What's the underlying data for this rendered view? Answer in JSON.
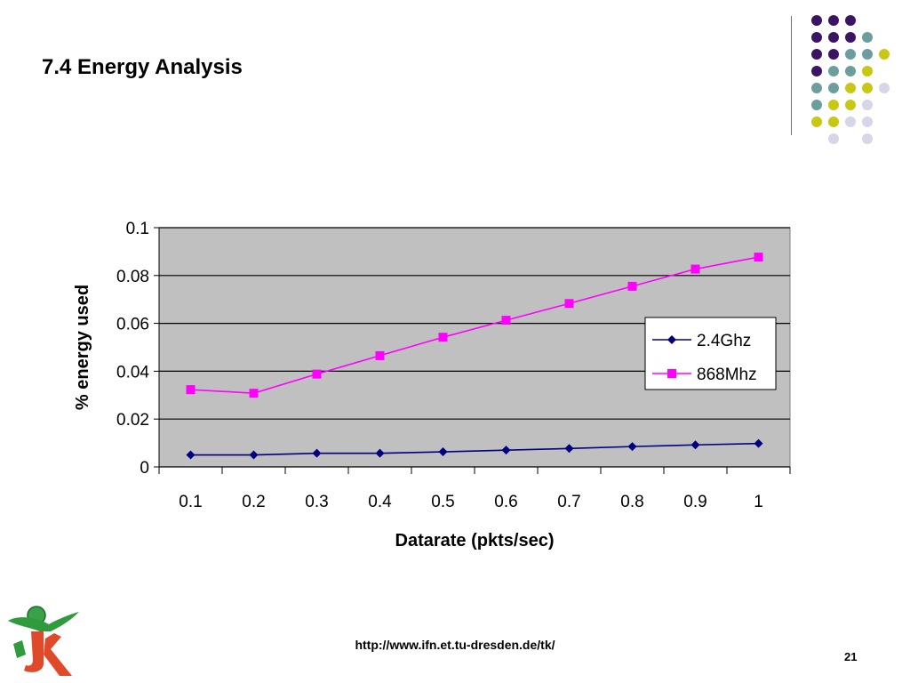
{
  "slide": {
    "title": "7.4 Energy Analysis",
    "footer_url": "http://www.ifn.et.tu-dresden.de/tk/",
    "page_number": "21"
  },
  "decoration": {
    "dot_colors": {
      "purple": "#3c1464",
      "teal": "#6b9e9c",
      "yellow": "#c8c814",
      "lavender": "#d6d6e8"
    },
    "dot_grid": [
      [
        "purple",
        "purple",
        "purple",
        null,
        null
      ],
      [
        "purple",
        "purple",
        "purple",
        "teal",
        null
      ],
      [
        "purple",
        "purple",
        "teal",
        "teal",
        "yellow"
      ],
      [
        "purple",
        "teal",
        "teal",
        "yellow",
        null
      ],
      [
        "teal",
        "teal",
        "yellow",
        "yellow",
        "lavender"
      ],
      [
        "teal",
        "yellow",
        "yellow",
        "lavender",
        null
      ],
      [
        "yellow",
        "yellow",
        "lavender",
        "lavender",
        null
      ],
      [
        null,
        "lavender",
        null,
        "lavender",
        null
      ]
    ]
  },
  "chart_data": {
    "type": "line",
    "title": "",
    "xlabel": "Datarate (pkts/sec)",
    "ylabel": "% energy used",
    "categories": [
      "0.1",
      "0.2",
      "0.3",
      "0.4",
      "0.5",
      "0.6",
      "0.7",
      "0.8",
      "0.9",
      "1"
    ],
    "yticks": [
      "0",
      "0.02",
      "0.04",
      "0.06",
      "0.08",
      "0.1"
    ],
    "ylim": [
      0,
      0.1
    ],
    "grid": true,
    "legend_position": "right",
    "plot_background": "#c0c0c0",
    "series": [
      {
        "name": "2.4Ghz",
        "color": "#000080",
        "marker": "diamond",
        "values": [
          0.005,
          0.005,
          0.0057,
          0.0057,
          0.0063,
          0.007,
          0.0077,
          0.0085,
          0.0092,
          0.0098
        ]
      },
      {
        "name": "868Mhz",
        "color": "#ff00ff",
        "marker": "square",
        "values": [
          0.0323,
          0.0308,
          0.0388,
          0.0465,
          0.0542,
          0.0613,
          0.0683,
          0.0755,
          0.0827,
          0.0877
        ]
      }
    ]
  }
}
